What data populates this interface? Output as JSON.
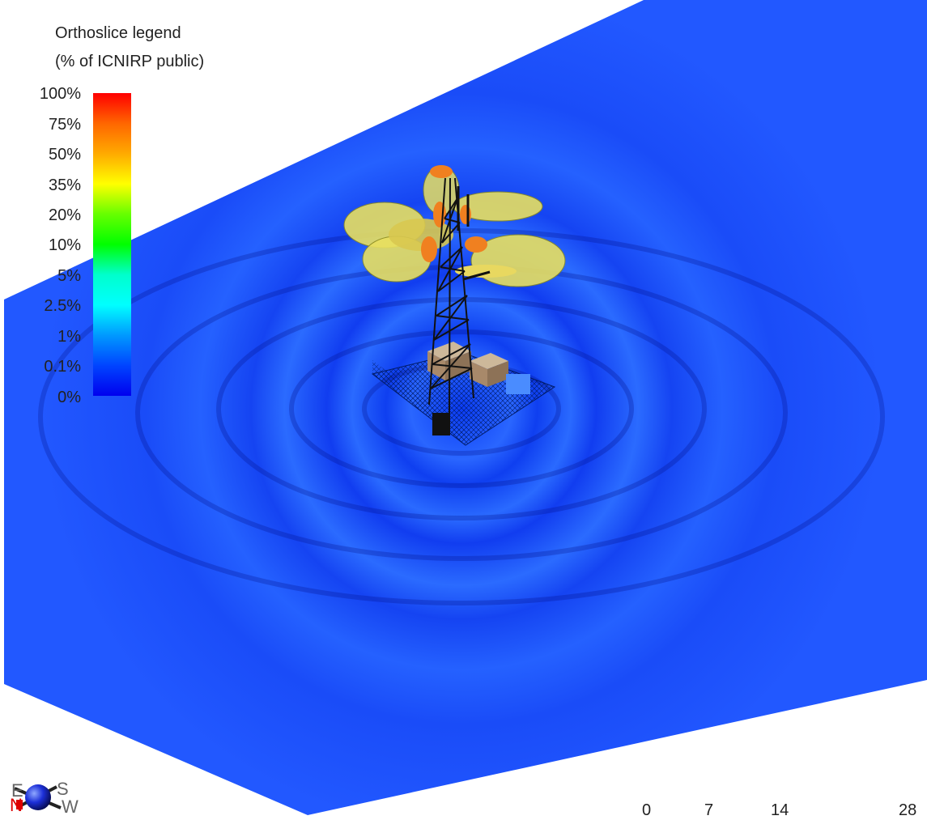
{
  "legend": {
    "title_line1": "Orthoslice legend",
    "title_line2": "(% of ICNIRP public)",
    "ticks": [
      "100%",
      "75%",
      "50%",
      "35%",
      "20%",
      "10%",
      "5%",
      "2.5%",
      "1%",
      "0.1%",
      "0%"
    ],
    "colors": [
      "#ff0000",
      "#ff6600",
      "#ffaa00",
      "#ffff00",
      "#66ff00",
      "#00ff00",
      "#00ffcc",
      "#00ffff",
      "#0099ff",
      "#0044ff",
      "#0000ee"
    ]
  },
  "compass": {
    "east": "E",
    "south": "S",
    "north": "N",
    "west": "W",
    "north_color": "#dd0000"
  },
  "scale": {
    "labels": [
      "0",
      "7",
      "14",
      "28"
    ]
  },
  "plane_color": "#1f4fff"
}
